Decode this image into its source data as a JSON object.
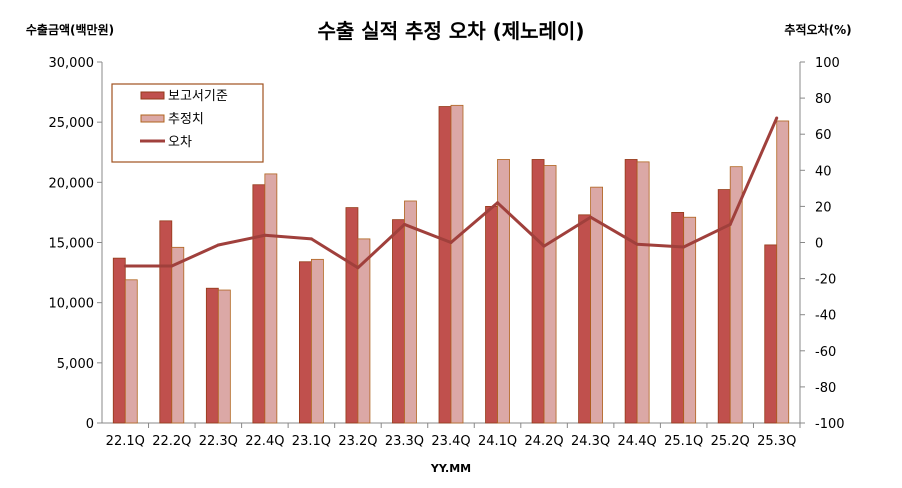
{
  "chart_data": {
    "type": "bar",
    "title": "수출 실적 추정 오차 (제노레이)",
    "ylabel": "수출금액(백만원)",
    "y2label": "추적오차(%)",
    "xlabel": "YY.MM",
    "ylim": [
      0,
      30000
    ],
    "y2lim": [
      -100,
      100
    ],
    "yticks": [
      "0",
      "5,000",
      "10,000",
      "15,000",
      "20,000",
      "25,000",
      "30,000"
    ],
    "y2ticks": [
      "-100",
      "-80",
      "-60",
      "-40",
      "-20",
      "0",
      "20",
      "40",
      "60",
      "80",
      "100"
    ],
    "grid": false,
    "legend_placement": "top-left",
    "categories": [
      "22.1Q",
      "22.2Q",
      "22.3Q",
      "22.4Q",
      "23.1Q",
      "23.2Q",
      "23.3Q",
      "23.4Q",
      "24.1Q",
      "24.2Q",
      "24.3Q",
      "24.4Q",
      "25.1Q",
      "25.2Q",
      "25.3Q"
    ],
    "series": [
      {
        "name": "보고서기준",
        "type": "bar",
        "axis": "left",
        "color": "#c0504d",
        "edge": "#943a18",
        "values": [
          13700,
          16800,
          11200,
          19800,
          13400,
          17900,
          16900,
          26300,
          18000,
          21900,
          17300,
          21900,
          17500,
          19400,
          14800
        ]
      },
      {
        "name": "추정치",
        "type": "bar",
        "axis": "left",
        "color": "#dba8a6",
        "edge": "#b0641e",
        "values": [
          11900,
          14600,
          11050,
          20700,
          13600,
          15300,
          18450,
          26400,
          21900,
          21400,
          19600,
          21700,
          17100,
          21300,
          25100
        ]
      },
      {
        "name": "오차",
        "type": "line",
        "axis": "right",
        "color": "#a0403c",
        "values": [
          -13,
          -13,
          -1.4,
          4,
          2,
          -14,
          10,
          0,
          22,
          -2,
          14,
          -1,
          -2.5,
          10,
          69
        ]
      }
    ]
  }
}
